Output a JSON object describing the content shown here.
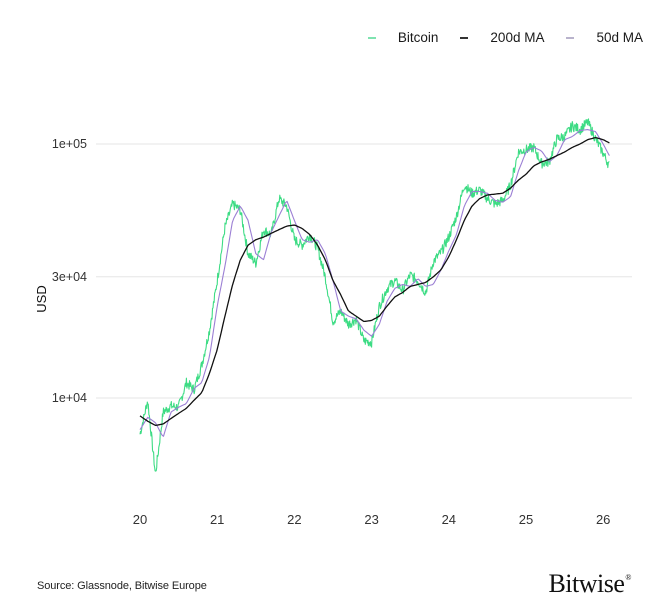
{
  "legend": {
    "items": [
      {
        "label": "Bitcoin",
        "color": "#3ddc84"
      },
      {
        "label": "200d MA",
        "color": "#111111"
      },
      {
        "label": "50d MA",
        "color": "#9b7fd4"
      }
    ]
  },
  "axes": {
    "ylabel": "USD",
    "yticks": [
      {
        "label": "1e+05",
        "value": 100000
      },
      {
        "label": "3e+04",
        "value": 30000
      },
      {
        "label": "1e+04",
        "value": 10000
      }
    ],
    "xticks": [
      {
        "label": "20",
        "value": 2020
      },
      {
        "label": "21",
        "value": 2021
      },
      {
        "label": "22",
        "value": 2022
      },
      {
        "label": "23",
        "value": 2023
      },
      {
        "label": "24",
        "value": 2024
      },
      {
        "label": "25",
        "value": 2025
      },
      {
        "label": "26",
        "value": 2026
      }
    ]
  },
  "footer": {
    "source": "Source: Glassnode, Bitwise Europe",
    "brand": "Bitwise",
    "brand_mark": "®"
  },
  "chart_data": {
    "type": "line",
    "title": "",
    "xlabel": "",
    "ylabel": "USD",
    "yscale": "log",
    "ylim": [
      3000,
      200000
    ],
    "xlim": [
      2019.95,
      2026.1
    ],
    "grid": {
      "horizontal": true,
      "vertical": false
    },
    "legend_position": "top-right",
    "x": [
      2020.0,
      2020.1,
      2020.2,
      2020.3,
      2020.4,
      2020.5,
      2020.6,
      2020.7,
      2020.8,
      2020.9,
      2021.0,
      2021.1,
      2021.2,
      2021.3,
      2021.4,
      2021.5,
      2021.6,
      2021.7,
      2021.8,
      2021.9,
      2022.0,
      2022.1,
      2022.2,
      2022.3,
      2022.4,
      2022.5,
      2022.6,
      2022.7,
      2022.8,
      2022.9,
      2023.0,
      2023.1,
      2023.2,
      2023.3,
      2023.4,
      2023.5,
      2023.6,
      2023.7,
      2023.8,
      2023.9,
      2024.0,
      2024.1,
      2024.2,
      2024.3,
      2024.4,
      2024.5,
      2024.6,
      2024.7,
      2024.8,
      2024.9,
      2025.0,
      2025.1,
      2025.2,
      2025.3,
      2025.4,
      2025.5,
      2025.6,
      2025.7,
      2025.8,
      2025.9,
      2026.0,
      2026.08
    ],
    "series": [
      {
        "name": "Bitcoin",
        "color": "#3ddc84",
        "values": [
          7200,
          9800,
          5000,
          8800,
          9300,
          9200,
          11500,
          10800,
          13500,
          18500,
          29000,
          47000,
          58000,
          55000,
          37000,
          34000,
          46000,
          44000,
          61000,
          57000,
          42000,
          40000,
          44000,
          39000,
          30000,
          20000,
          22000,
          19500,
          20500,
          16800,
          16600,
          23000,
          27000,
          29000,
          26500,
          30500,
          29000,
          26000,
          34500,
          37500,
          43000,
          52000,
          69000,
          64000,
          66000,
          61000,
          58000,
          60000,
          69000,
          93000,
          95000,
          97000,
          84000,
          85000,
          105000,
          107000,
          118000,
          114000,
          122000,
          105000,
          92000,
          82000
        ]
      },
      {
        "name": "200d MA",
        "color": "#111111",
        "values": [
          8500,
          8100,
          7800,
          7900,
          8300,
          8700,
          9100,
          9800,
          10500,
          12500,
          15500,
          21000,
          28000,
          35000,
          40000,
          42000,
          43000,
          44500,
          46000,
          47500,
          48000,
          46500,
          44000,
          40000,
          35000,
          29000,
          25500,
          22000,
          21000,
          20000,
          20200,
          21000,
          23000,
          25000,
          26000,
          27500,
          28000,
          28500,
          30000,
          32000,
          36000,
          42000,
          50000,
          57000,
          61000,
          63000,
          63500,
          64000,
          67000,
          72000,
          76000,
          82000,
          85000,
          87000,
          90000,
          93000,
          97000,
          100000,
          104000,
          106000,
          104000,
          101000
        ]
      },
      {
        "name": "50d MA",
        "color": "#9b7fd4",
        "values": [
          7500,
          8400,
          8000,
          7000,
          8800,
          9200,
          9500,
          10900,
          11500,
          14500,
          23000,
          33000,
          50000,
          57000,
          50000,
          37000,
          35000,
          45000,
          52000,
          60000,
          50000,
          42000,
          41000,
          42000,
          37000,
          29000,
          22000,
          21000,
          20500,
          18500,
          17500,
          19500,
          24000,
          27000,
          28000,
          27500,
          29500,
          27500,
          28000,
          32000,
          38000,
          44000,
          57000,
          65000,
          65000,
          64000,
          60000,
          59000,
          62000,
          78000,
          93000,
          97000,
          94000,
          85000,
          90000,
          104000,
          107000,
          113000,
          114000,
          112000,
          100000,
          90000
        ]
      }
    ]
  }
}
